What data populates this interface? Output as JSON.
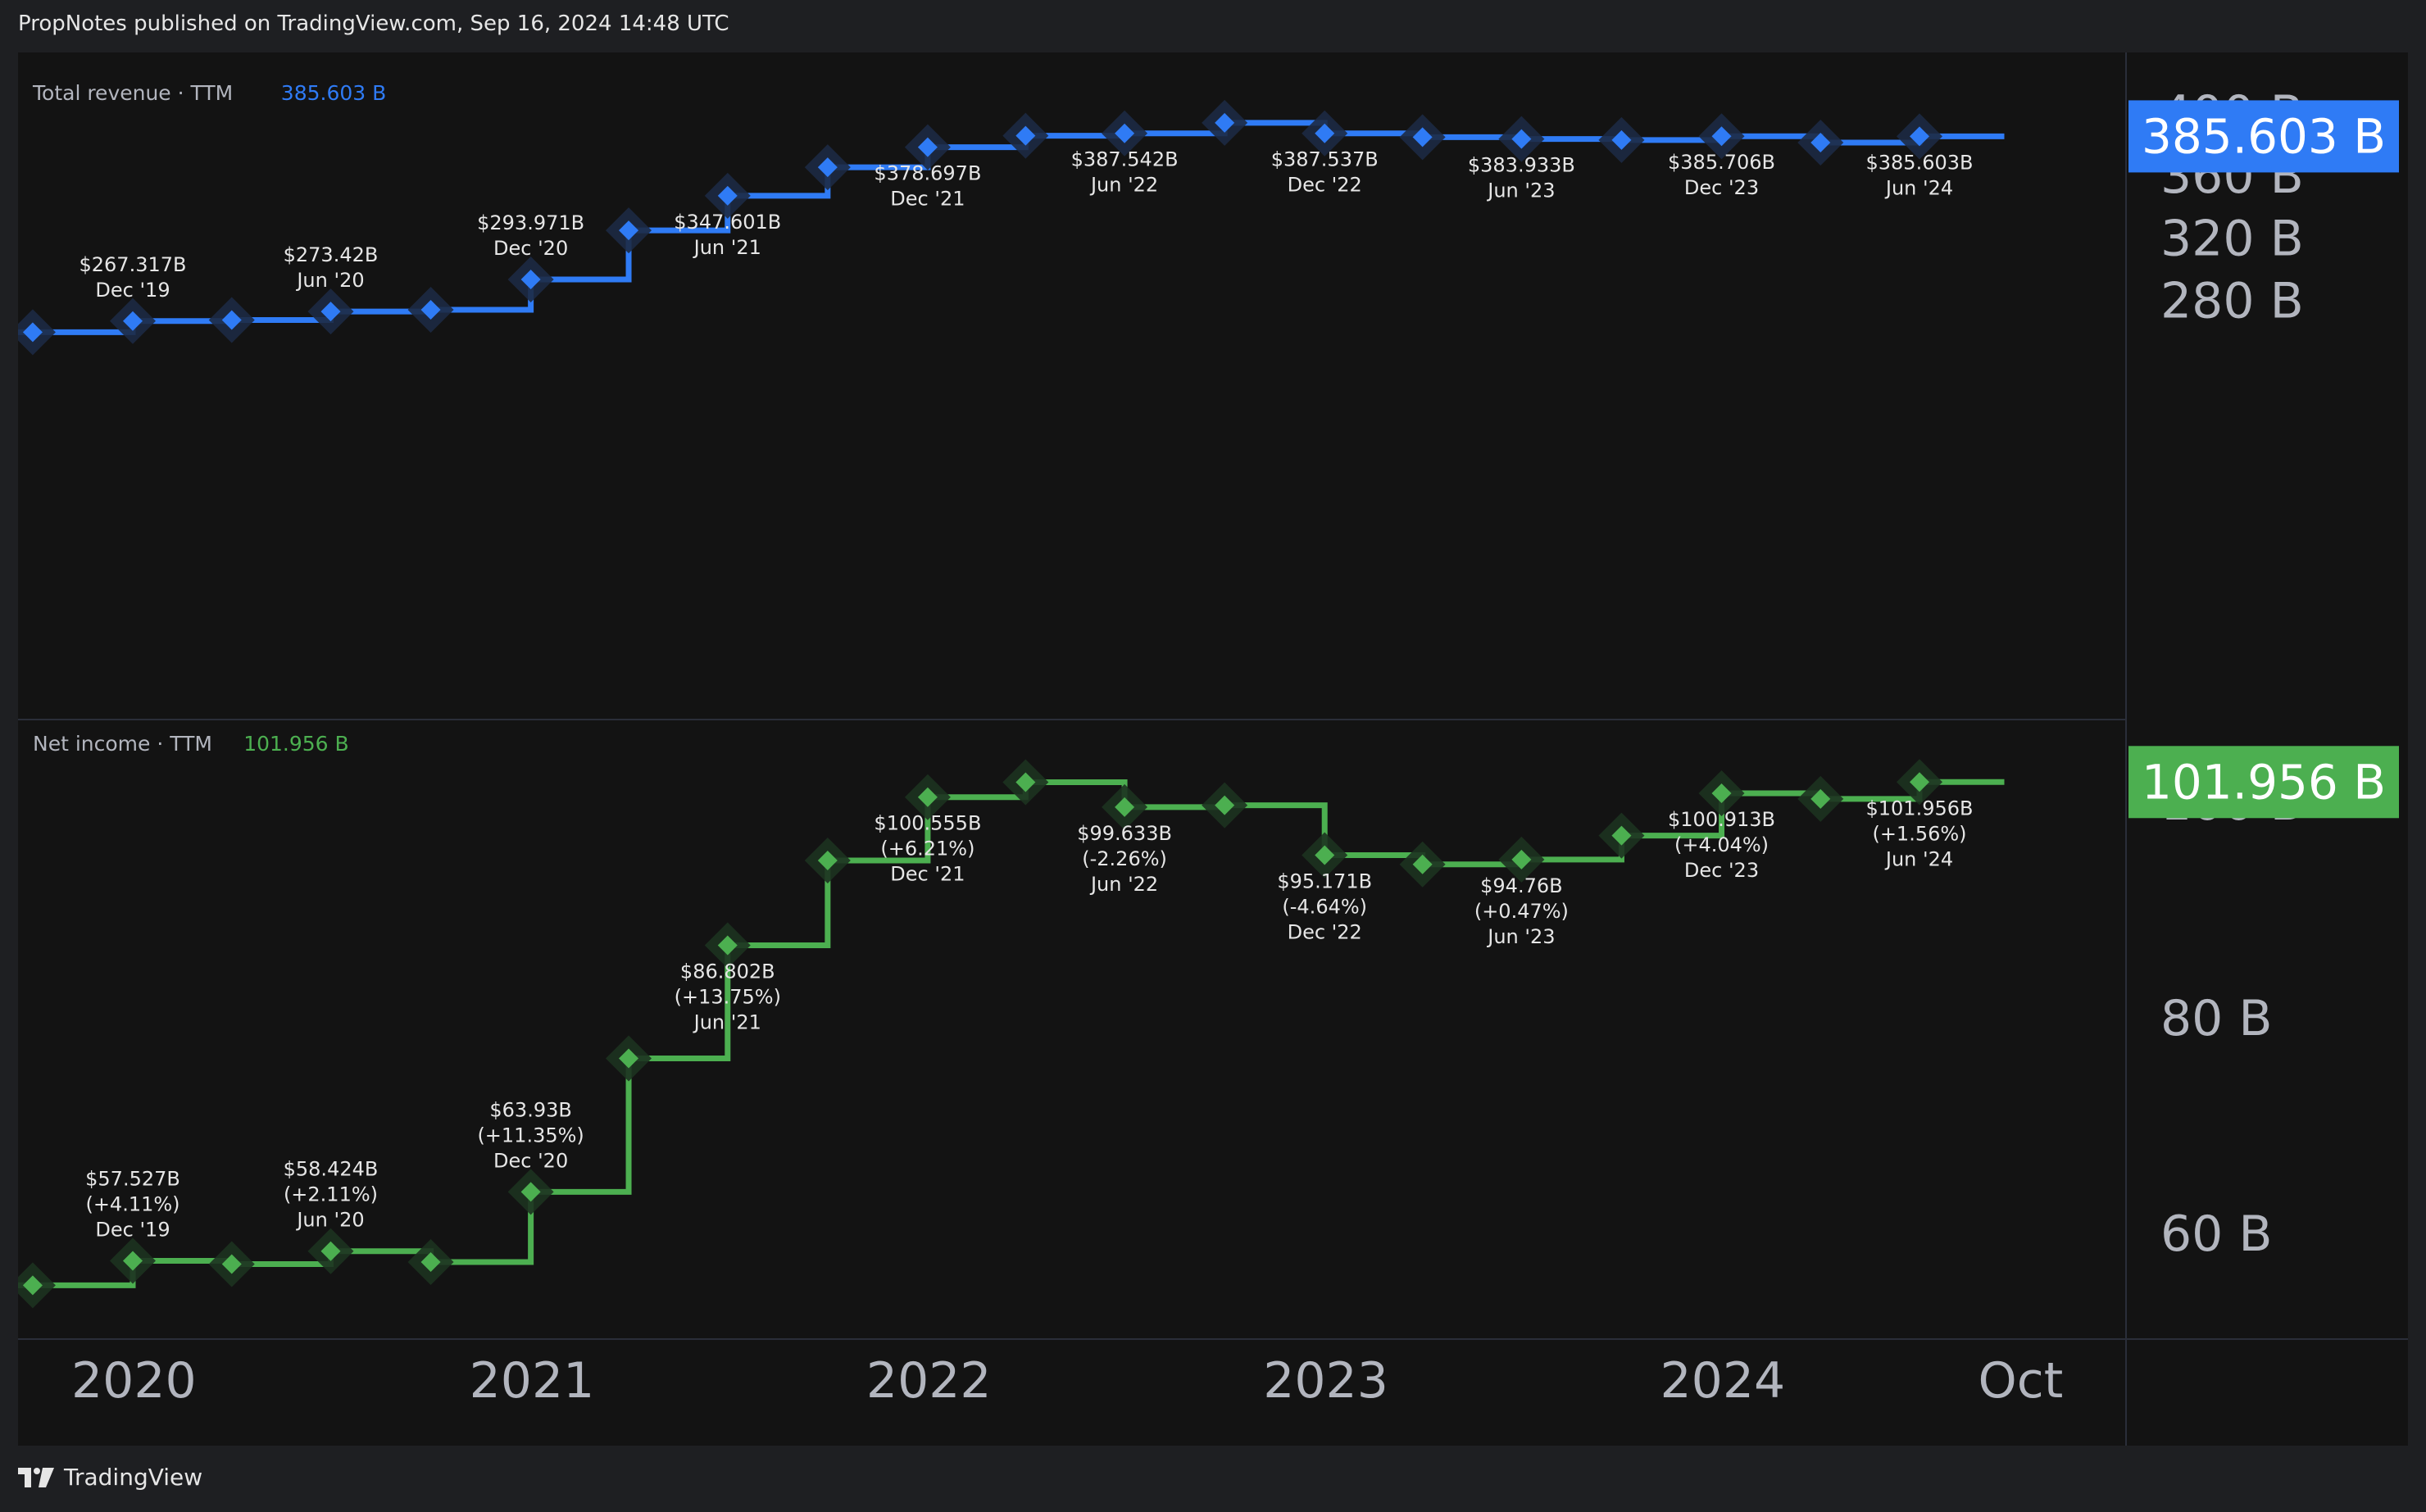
{
  "header": {
    "publish_info": "PropNotes published on TradingView.com, Sep 16, 2024 14:48 UTC"
  },
  "footer": {
    "brand": "TradingView"
  },
  "colors": {
    "revenue": "#2f7bf5",
    "net_income": "#4caf50",
    "background": "#131313",
    "grid": "#2a2e39",
    "axis_text": "#b2b5be"
  },
  "x_axis": {
    "ticks": [
      {
        "label": "2020",
        "date": "2020-01-01"
      },
      {
        "label": "2021",
        "date": "2021-01-01"
      },
      {
        "label": "2022",
        "date": "2022-01-01"
      },
      {
        "label": "2023",
        "date": "2023-01-01"
      },
      {
        "label": "2024",
        "date": "2024-01-01"
      },
      {
        "label": "Oct",
        "date": "2024-10-01"
      }
    ]
  },
  "chart_data": [
    {
      "type": "line",
      "title": "Total revenue · TTM",
      "current_value_label": "385.603 B",
      "legend_value": "385.603 B",
      "units": "B",
      "ylim": [
        248,
        400
      ],
      "y_ticks": [
        {
          "value": 400,
          "label": "400 B"
        },
        {
          "value": 360,
          "label": "360 B"
        },
        {
          "value": 320,
          "label": "320 B"
        },
        {
          "value": 280,
          "label": "280 B"
        }
      ],
      "series": [
        {
          "points": [
            {
              "date": "2019-06-30",
              "value": 260.2
            },
            {
              "date": "2019-09-30",
              "value": 260.2
            },
            {
              "date": "2019-12-31",
              "value": 267.317,
              "label": "$267.317B",
              "date_label": "Dec '19"
            },
            {
              "date": "2020-03-31",
              "value": 267.98
            },
            {
              "date": "2020-06-30",
              "value": 273.42,
              "label": "$273.42B",
              "date_label": "Jun '20"
            },
            {
              "date": "2020-09-30",
              "value": 274.52
            },
            {
              "date": "2020-12-31",
              "value": 293.971,
              "label": "$293.971B",
              "date_label": "Dec '20"
            },
            {
              "date": "2021-03-31",
              "value": 325.4
            },
            {
              "date": "2021-06-30",
              "value": 347.601,
              "label": "$347.601B",
              "date_label": "Jun '21"
            },
            {
              "date": "2021-09-30",
              "value": 365.8
            },
            {
              "date": "2021-12-31",
              "value": 378.697,
              "label": "$378.697B",
              "date_label": "Dec '21"
            },
            {
              "date": "2022-03-31",
              "value": 386.0
            },
            {
              "date": "2022-06-30",
              "value": 387.542,
              "label": "$387.542B",
              "date_label": "Jun '22"
            },
            {
              "date": "2022-09-30",
              "value": 394.3
            },
            {
              "date": "2022-12-31",
              "value": 387.537,
              "label": "$387.537B",
              "date_label": "Dec '22"
            },
            {
              "date": "2023-03-31",
              "value": 385.1
            },
            {
              "date": "2023-06-30",
              "value": 383.933,
              "label": "$383.933B",
              "date_label": "Jun '23"
            },
            {
              "date": "2023-09-30",
              "value": 383.3
            },
            {
              "date": "2023-12-31",
              "value": 385.706,
              "label": "$385.706B",
              "date_label": "Dec '23"
            },
            {
              "date": "2024-03-31",
              "value": 381.6
            },
            {
              "date": "2024-06-30",
              "value": 385.603,
              "label": "$385.603B",
              "date_label": "Jun '24"
            },
            {
              "date": "2024-09-16",
              "value": 385.603
            }
          ]
        }
      ]
    },
    {
      "type": "line",
      "title": "Net income · TTM",
      "current_value_label": "101.956 B",
      "legend_value": "101.956 B",
      "units": "B",
      "ylim": [
        52.5,
        107
      ],
      "y_ticks": [
        {
          "value": 100,
          "label": "100 B"
        },
        {
          "value": 80,
          "label": "80 B"
        },
        {
          "value": 60,
          "label": "60 B"
        }
      ],
      "series": [
        {
          "points": [
            {
              "date": "2019-06-30",
              "value": 55.26
            },
            {
              "date": "2019-09-30",
              "value": 55.26
            },
            {
              "date": "2019-12-31",
              "value": 57.527,
              "label": "$57.527B",
              "pct": "(+4.11%)",
              "date_label": "Dec '19"
            },
            {
              "date": "2020-03-31",
              "value": 57.22
            },
            {
              "date": "2020-06-30",
              "value": 58.424,
              "label": "$58.424B",
              "pct": "(+2.11%)",
              "date_label": "Jun '20"
            },
            {
              "date": "2020-09-30",
              "value": 57.41
            },
            {
              "date": "2020-12-31",
              "value": 63.93,
              "label": "$63.93B",
              "pct": "(+11.35%)",
              "date_label": "Dec '20"
            },
            {
              "date": "2021-03-31",
              "value": 76.31
            },
            {
              "date": "2021-06-30",
              "value": 86.802,
              "label": "$86.802B",
              "pct": "(+13.75%)",
              "date_label": "Jun '21"
            },
            {
              "date": "2021-09-30",
              "value": 94.68
            },
            {
              "date": "2021-12-31",
              "value": 100.555,
              "label": "$100.555B",
              "pct": "(+6.21%)",
              "date_label": "Dec '21"
            },
            {
              "date": "2022-03-31",
              "value": 101.94
            },
            {
              "date": "2022-06-30",
              "value": 99.633,
              "label": "$99.633B",
              "pct": "(-2.26%)",
              "date_label": "Jun '22"
            },
            {
              "date": "2022-09-30",
              "value": 99.8
            },
            {
              "date": "2022-12-31",
              "value": 95.171,
              "label": "$95.171B",
              "pct": "(-4.64%)",
              "date_label": "Dec '22"
            },
            {
              "date": "2023-03-31",
              "value": 94.32
            },
            {
              "date": "2023-06-30",
              "value": 94.76,
              "label": "$94.76B",
              "pct": "(+0.47%)",
              "date_label": "Jun '23"
            },
            {
              "date": "2023-09-30",
              "value": 96.99
            },
            {
              "date": "2023-12-31",
              "value": 100.913,
              "label": "$100.913B",
              "pct": "(+4.04%)",
              "date_label": "Dec '23"
            },
            {
              "date": "2024-03-31",
              "value": 100.39
            },
            {
              "date": "2024-06-30",
              "value": 101.956,
              "label": "$101.956B",
              "pct": "(+1.56%)",
              "date_label": "Jun '24"
            },
            {
              "date": "2024-09-16",
              "value": 101.956
            }
          ]
        }
      ]
    }
  ]
}
